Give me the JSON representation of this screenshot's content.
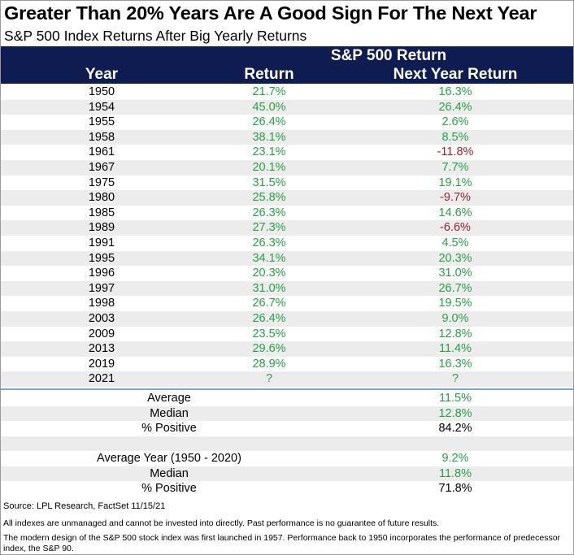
{
  "title": "Greater Than 20% Years Are A Good Sign For The Next Year",
  "subtitle": "S&P 500 Index Returns After Big Yearly Returns",
  "header": {
    "group_label": "S&P 500 Return",
    "col_year": "Year",
    "col_return": "Return",
    "col_next": "Next Year Return"
  },
  "colors": {
    "header_bg": "#0e1c52",
    "positive": "#27a243",
    "negative": "#a0222a",
    "row_shade": "#ececec",
    "separator": "#7ba6c8"
  },
  "chart_data": {
    "type": "table",
    "columns": [
      "Year",
      "Return",
      "Next Year Return"
    ],
    "rows": [
      [
        "1950",
        "21.7%",
        "16.3%"
      ],
      [
        "1954",
        "45.0%",
        "26.4%"
      ],
      [
        "1955",
        "26.4%",
        "2.6%"
      ],
      [
        "1958",
        "38.1%",
        "8.5%"
      ],
      [
        "1961",
        "23.1%",
        "-11.8%"
      ],
      [
        "1967",
        "20.1%",
        "7.7%"
      ],
      [
        "1975",
        "31.5%",
        "19.1%"
      ],
      [
        "1980",
        "25.8%",
        "-9.7%"
      ],
      [
        "1985",
        "26.3%",
        "14.6%"
      ],
      [
        "1989",
        "27.3%",
        "-6.6%"
      ],
      [
        "1991",
        "26.3%",
        "4.5%"
      ],
      [
        "1995",
        "34.1%",
        "20.3%"
      ],
      [
        "1996",
        "20.3%",
        "31.0%"
      ],
      [
        "1997",
        "31.0%",
        "26.7%"
      ],
      [
        "1998",
        "26.7%",
        "19.5%"
      ],
      [
        "2003",
        "26.4%",
        "9.0%"
      ],
      [
        "2009",
        "23.5%",
        "12.8%"
      ],
      [
        "2013",
        "29.6%",
        "11.4%"
      ],
      [
        "2019",
        "28.9%",
        "16.3%"
      ],
      [
        "2021",
        "?",
        "?"
      ]
    ]
  },
  "summary": [
    {
      "label": "Average",
      "value": "11.5%",
      "tone": "pos",
      "shade": false
    },
    {
      "label": "Median",
      "value": "12.8%",
      "tone": "pos",
      "shade": true
    },
    {
      "label": "% Positive",
      "value": "84.2%",
      "tone": "black",
      "shade": false
    },
    {
      "label": "",
      "value": "",
      "tone": "black",
      "shade": true
    },
    {
      "label": "Average Year (1950 - 2020)",
      "value": "9.2%",
      "tone": "pos",
      "shade": false
    },
    {
      "label": "Median",
      "value": "11.8%",
      "tone": "pos",
      "shade": true
    },
    {
      "label": "% Positive",
      "value": "71.8%",
      "tone": "black",
      "shade": false
    }
  ],
  "footer": {
    "source": "Source: LPL Research, FactSet 11/15/21",
    "disclaimer1": "All indexes are unmanaged and cannot be invested into directly. Past performance is no guarantee of future results.",
    "disclaimer2": "The modern design of the S&P 500 stock index was first launched in 1957. Performance back to 1950 incorporates the performance of predecessor index, the S&P 90."
  }
}
